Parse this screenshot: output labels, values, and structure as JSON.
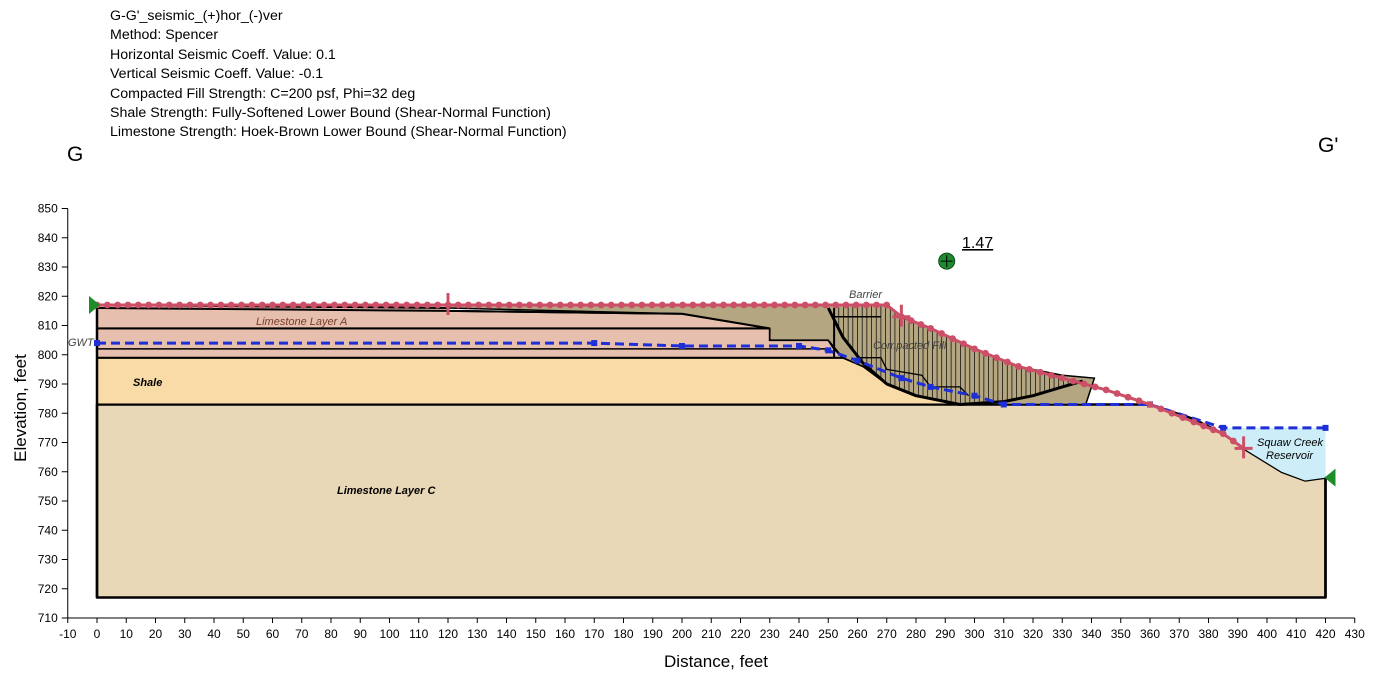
{
  "header": {
    "lines": [
      "G-G'_seismic_(+)hor_(-)ver",
      "Method: Spencer",
      "Horizontal Seismic Coeff. Value: 0.1",
      "Vertical Seismic Coeff. Value: -0.1",
      "Compacted Fill Strength:  C=200 psf, Phi=32 deg",
      "Shale Strength:   Fully-Softened Lower Bound (Shear-Normal Function)",
      "Limestone Strength: Hoek-Brown Lower Bound (Shear-Normal Function)"
    ]
  },
  "section_left": "G",
  "section_right": "G'",
  "factor_of_safety": "1.47",
  "axes": {
    "xlabel": "Distance, feet",
    "ylabel": "Elevation, feet",
    "xlim": [
      -10,
      430
    ],
    "ylim": [
      710,
      850
    ],
    "x_ticks": [
      -10,
      0,
      10,
      20,
      30,
      40,
      50,
      60,
      70,
      80,
      90,
      100,
      110,
      120,
      130,
      140,
      150,
      160,
      170,
      180,
      190,
      200,
      210,
      220,
      230,
      240,
      250,
      260,
      270,
      280,
      290,
      300,
      310,
      320,
      330,
      340,
      350,
      360,
      370,
      380,
      390,
      400,
      410,
      420,
      430
    ],
    "y_ticks": [
      710,
      720,
      730,
      740,
      750,
      760,
      770,
      780,
      790,
      800,
      810,
      820,
      830,
      840,
      850
    ]
  },
  "labels": {
    "limestone_a": "Limestone Layer A",
    "shale": "Shale",
    "limestone_c": "Limestone Layer C",
    "gwt": "GWT",
    "barrier": "Barrier",
    "compacted_fill": "Compacted Fill",
    "reservoir_line1": "Squaw Creek",
    "reservoir_line2": "Reservoir"
  },
  "colors": {
    "limestone_a": "#e6bfae",
    "shale": "#f9dba7",
    "limestone_c": "#e9d8b7",
    "fill": "#b4a680",
    "water": "#cdeef8",
    "water_table": "#1f2fd8",
    "slip_surface": "#cc4f67",
    "fos_marker": "#1e8a32",
    "boundary_marker": "#1f8c2a"
  },
  "chart_data": {
    "type": "line",
    "xlabel": "Distance, feet",
    "ylabel": "Elevation, feet",
    "xlim": [
      -10,
      430
    ],
    "ylim": [
      710,
      850
    ],
    "critical_slip_center": [
      290.5,
      832
    ],
    "factor_of_safety": 1.47,
    "series": [
      {
        "values": [
          [
            0,
            817
          ],
          [
            120,
            817
          ],
          [
            270,
            817
          ],
          [
            275,
            813
          ],
          [
            285,
            809
          ],
          [
            300,
            802
          ],
          [
            315,
            796
          ],
          [
            330,
            792
          ],
          [
            345,
            788
          ],
          [
            360,
            783
          ],
          [
            375,
            777
          ],
          [
            385,
            773
          ],
          [
            392,
            768
          ]
        ]
      },
      {
        "values": [
          [
            0,
            804
          ],
          [
            170,
            804
          ],
          [
            200,
            803
          ],
          [
            240,
            803
          ],
          [
            250,
            801.5
          ],
          [
            260,
            798
          ],
          [
            275,
            792
          ],
          [
            285,
            789
          ],
          [
            300,
            786
          ],
          [
            310,
            783
          ],
          [
            360,
            783
          ],
          [
            385,
            775
          ],
          [
            420,
            775
          ]
        ]
      }
    ]
  }
}
